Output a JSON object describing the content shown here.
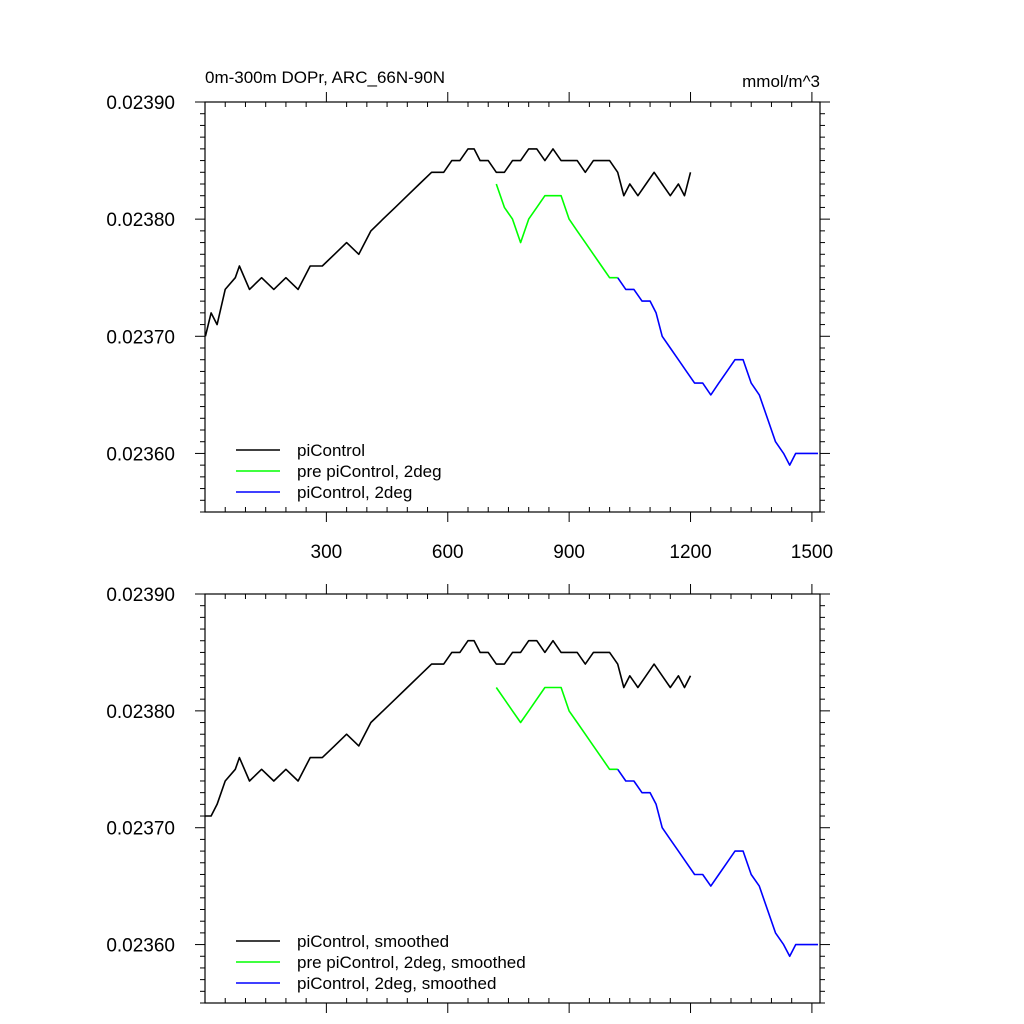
{
  "chart_data": [
    {
      "type": "line",
      "title": "0m-300m DOPr, ARC_66N-90N",
      "units": "mmol/m^3",
      "xlim": [
        0,
        1520
      ],
      "ylim": [
        0.02355,
        0.0239
      ],
      "xticks": [
        300,
        600,
        900,
        1200,
        1500
      ],
      "xtick_labels": [
        "300",
        "600",
        "900",
        "1200",
        "1500"
      ],
      "yticks": [
        0.0236,
        0.0237,
        0.0238,
        0.0239
      ],
      "ytick_labels": [
        "0.02360",
        "0.02370",
        "0.02380",
        "0.02390"
      ],
      "legend_position": "bottom-left",
      "series": [
        {
          "name": "piControl",
          "color": "#000000",
          "points": [
            [
              1,
              0.0237
            ],
            [
              15,
              0.02372
            ],
            [
              30,
              0.02371
            ],
            [
              50,
              0.02374
            ],
            [
              75,
              0.02375
            ],
            [
              85,
              0.02376
            ],
            [
              110,
              0.02374
            ],
            [
              140,
              0.02375
            ],
            [
              170,
              0.02374
            ],
            [
              200,
              0.02375
            ],
            [
              230,
              0.02374
            ],
            [
              260,
              0.02376
            ],
            [
              290,
              0.02376
            ],
            [
              320,
              0.02377
            ],
            [
              350,
              0.02378
            ],
            [
              380,
              0.02377
            ],
            [
              410,
              0.02379
            ],
            [
              440,
              0.0238
            ],
            [
              470,
              0.02381
            ],
            [
              500,
              0.02382
            ],
            [
              530,
              0.02383
            ],
            [
              560,
              0.02384
            ],
            [
              590,
              0.02384
            ],
            [
              610,
              0.02385
            ],
            [
              630,
              0.02385
            ],
            [
              650,
              0.02386
            ],
            [
              665,
              0.02386
            ],
            [
              680,
              0.02385
            ],
            [
              700,
              0.02385
            ],
            [
              720,
              0.02384
            ],
            [
              740,
              0.02384
            ],
            [
              760,
              0.02385
            ],
            [
              780,
              0.02385
            ],
            [
              800,
              0.02386
            ],
            [
              820,
              0.02386
            ],
            [
              840,
              0.02385
            ],
            [
              860,
              0.02386
            ],
            [
              880,
              0.02385
            ],
            [
              900,
              0.02385
            ],
            [
              920,
              0.02385
            ],
            [
              940,
              0.02384
            ],
            [
              960,
              0.02385
            ],
            [
              980,
              0.02385
            ],
            [
              1000,
              0.02385
            ],
            [
              1020,
              0.02384
            ],
            [
              1035,
              0.02382
            ],
            [
              1050,
              0.02383
            ],
            [
              1070,
              0.02382
            ],
            [
              1090,
              0.02383
            ],
            [
              1110,
              0.02384
            ],
            [
              1130,
              0.02383
            ],
            [
              1150,
              0.02382
            ],
            [
              1170,
              0.02383
            ],
            [
              1185,
              0.02382
            ],
            [
              1200,
              0.02384
            ]
          ]
        },
        {
          "name": "pre piControl, 2deg",
          "color": "#00ff00",
          "points": [
            [
              720,
              0.02383
            ],
            [
              740,
              0.02381
            ],
            [
              760,
              0.0238
            ],
            [
              780,
              0.02378
            ],
            [
              800,
              0.0238
            ],
            [
              820,
              0.02381
            ],
            [
              840,
              0.02382
            ],
            [
              860,
              0.02382
            ],
            [
              880,
              0.02382
            ],
            [
              900,
              0.0238
            ],
            [
              920,
              0.02379
            ],
            [
              940,
              0.02378
            ],
            [
              960,
              0.02377
            ],
            [
              980,
              0.02376
            ],
            [
              1000,
              0.02375
            ],
            [
              1020,
              0.02375
            ]
          ]
        },
        {
          "name": "piControl, 2deg",
          "color": "#0000ff",
          "points": [
            [
              1020,
              0.02375
            ],
            [
              1040,
              0.02374
            ],
            [
              1060,
              0.02374
            ],
            [
              1080,
              0.02373
            ],
            [
              1100,
              0.02373
            ],
            [
              1115,
              0.02372
            ],
            [
              1130,
              0.0237
            ],
            [
              1150,
              0.02369
            ],
            [
              1170,
              0.02368
            ],
            [
              1190,
              0.02367
            ],
            [
              1210,
              0.02366
            ],
            [
              1230,
              0.02366
            ],
            [
              1250,
              0.02365
            ],
            [
              1270,
              0.02366
            ],
            [
              1290,
              0.02367
            ],
            [
              1310,
              0.02368
            ],
            [
              1330,
              0.02368
            ],
            [
              1350,
              0.02366
            ],
            [
              1370,
              0.02365
            ],
            [
              1390,
              0.02363
            ],
            [
              1410,
              0.02361
            ],
            [
              1430,
              0.0236
            ],
            [
              1445,
              0.02359
            ],
            [
              1460,
              0.0236
            ],
            [
              1480,
              0.0236
            ],
            [
              1500,
              0.0236
            ],
            [
              1515,
              0.0236
            ]
          ]
        }
      ]
    },
    {
      "type": "line",
      "title": "",
      "units": "",
      "xlim": [
        0,
        1520
      ],
      "ylim": [
        0.02355,
        0.0239
      ],
      "xticks": [
        300,
        600,
        900,
        1200,
        1500
      ],
      "xtick_labels": [],
      "yticks": [
        0.0236,
        0.0237,
        0.0238,
        0.0239
      ],
      "ytick_labels": [
        "0.02360",
        "0.02370",
        "0.02380",
        "0.02390"
      ],
      "legend_position": "bottom-left",
      "series": [
        {
          "name": "piControl, smoothed",
          "color": "#000000",
          "points": [
            [
              1,
              0.02371
            ],
            [
              15,
              0.02371
            ],
            [
              30,
              0.02372
            ],
            [
              50,
              0.02374
            ],
            [
              75,
              0.02375
            ],
            [
              85,
              0.02376
            ],
            [
              110,
              0.02374
            ],
            [
              140,
              0.02375
            ],
            [
              170,
              0.02374
            ],
            [
              200,
              0.02375
            ],
            [
              230,
              0.02374
            ],
            [
              260,
              0.02376
            ],
            [
              290,
              0.02376
            ],
            [
              320,
              0.02377
            ],
            [
              350,
              0.02378
            ],
            [
              380,
              0.02377
            ],
            [
              410,
              0.02379
            ],
            [
              440,
              0.0238
            ],
            [
              470,
              0.02381
            ],
            [
              500,
              0.02382
            ],
            [
              530,
              0.02383
            ],
            [
              560,
              0.02384
            ],
            [
              590,
              0.02384
            ],
            [
              610,
              0.02385
            ],
            [
              630,
              0.02385
            ],
            [
              650,
              0.02386
            ],
            [
              665,
              0.02386
            ],
            [
              680,
              0.02385
            ],
            [
              700,
              0.02385
            ],
            [
              720,
              0.02384
            ],
            [
              740,
              0.02384
            ],
            [
              760,
              0.02385
            ],
            [
              780,
              0.02385
            ],
            [
              800,
              0.02386
            ],
            [
              820,
              0.02386
            ],
            [
              840,
              0.02385
            ],
            [
              860,
              0.02386
            ],
            [
              880,
              0.02385
            ],
            [
              900,
              0.02385
            ],
            [
              920,
              0.02385
            ],
            [
              940,
              0.02384
            ],
            [
              960,
              0.02385
            ],
            [
              980,
              0.02385
            ],
            [
              1000,
              0.02385
            ],
            [
              1020,
              0.02384
            ],
            [
              1035,
              0.02382
            ],
            [
              1050,
              0.02383
            ],
            [
              1070,
              0.02382
            ],
            [
              1090,
              0.02383
            ],
            [
              1110,
              0.02384
            ],
            [
              1130,
              0.02383
            ],
            [
              1150,
              0.02382
            ],
            [
              1170,
              0.02383
            ],
            [
              1185,
              0.02382
            ],
            [
              1200,
              0.02383
            ]
          ]
        },
        {
          "name": "pre piControl, 2deg, smoothed",
          "color": "#00ff00",
          "points": [
            [
              720,
              0.02382
            ],
            [
              740,
              0.02381
            ],
            [
              760,
              0.0238
            ],
            [
              780,
              0.02379
            ],
            [
              800,
              0.0238
            ],
            [
              820,
              0.02381
            ],
            [
              840,
              0.02382
            ],
            [
              860,
              0.02382
            ],
            [
              880,
              0.02382
            ],
            [
              900,
              0.0238
            ],
            [
              920,
              0.02379
            ],
            [
              940,
              0.02378
            ],
            [
              960,
              0.02377
            ],
            [
              980,
              0.02376
            ],
            [
              1000,
              0.02375
            ],
            [
              1020,
              0.02375
            ]
          ]
        },
        {
          "name": "piControl, 2deg, smoothed",
          "color": "#0000ff",
          "points": [
            [
              1020,
              0.02375
            ],
            [
              1040,
              0.02374
            ],
            [
              1060,
              0.02374
            ],
            [
              1080,
              0.02373
            ],
            [
              1100,
              0.02373
            ],
            [
              1115,
              0.02372
            ],
            [
              1130,
              0.0237
            ],
            [
              1150,
              0.02369
            ],
            [
              1170,
              0.02368
            ],
            [
              1190,
              0.02367
            ],
            [
              1210,
              0.02366
            ],
            [
              1230,
              0.02366
            ],
            [
              1250,
              0.02365
            ],
            [
              1270,
              0.02366
            ],
            [
              1290,
              0.02367
            ],
            [
              1310,
              0.02368
            ],
            [
              1330,
              0.02368
            ],
            [
              1350,
              0.02366
            ],
            [
              1370,
              0.02365
            ],
            [
              1390,
              0.02363
            ],
            [
              1410,
              0.02361
            ],
            [
              1430,
              0.0236
            ],
            [
              1445,
              0.02359
            ],
            [
              1460,
              0.0236
            ],
            [
              1480,
              0.0236
            ],
            [
              1500,
              0.0236
            ],
            [
              1515,
              0.0236
            ]
          ]
        }
      ]
    }
  ]
}
